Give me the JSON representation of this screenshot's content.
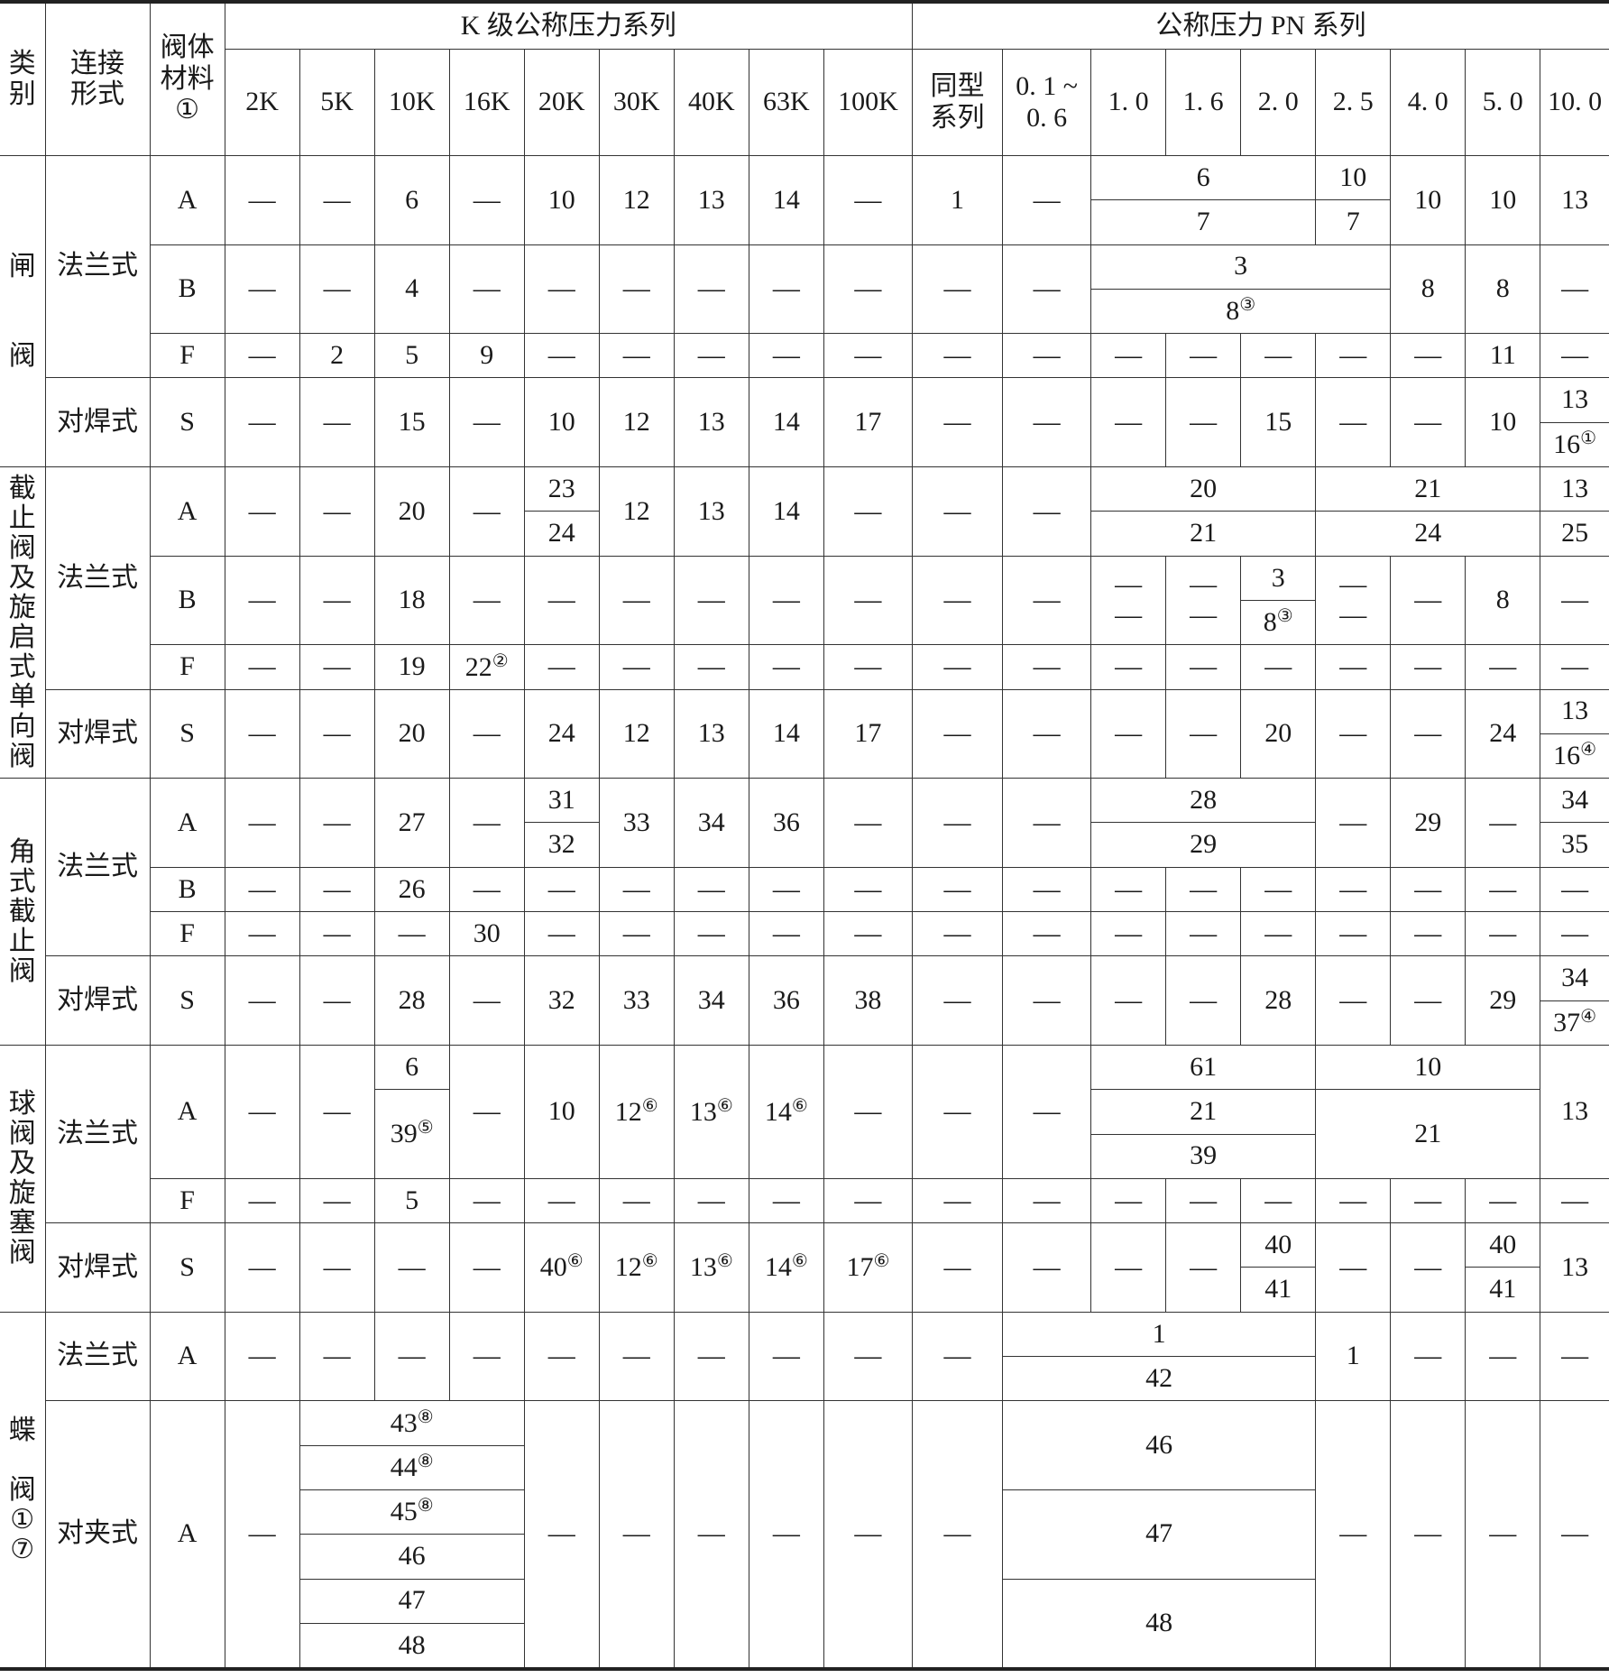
{
  "header": {
    "row1": [
      {
        "text": "类\n别",
        "rowspan": 2
      },
      {
        "text": "连接\n形式",
        "rowspan": 2
      },
      {
        "text": "阀体\n材料\n①",
        "rowspan": 2
      },
      {
        "text": "K 级公称压力系列",
        "colspan": 9
      },
      {
        "text": "公称压力 PN 系列",
        "colspan": 9
      }
    ],
    "row2": [
      {
        "text": "2K"
      },
      {
        "text": "5K"
      },
      {
        "text": "10K"
      },
      {
        "text": "16K"
      },
      {
        "text": "20K"
      },
      {
        "text": "30K"
      },
      {
        "text": "40K"
      },
      {
        "text": "63K"
      },
      {
        "text": "100K"
      },
      {
        "text": "同型\n系列"
      },
      {
        "text": "0. 1 ~\n0. 6"
      },
      {
        "text": "1. 0"
      },
      {
        "text": "1. 6"
      },
      {
        "text": "2. 0"
      },
      {
        "text": "2. 5"
      },
      {
        "text": "4. 0"
      },
      {
        "text": "5. 0"
      },
      {
        "text": "10. 0"
      }
    ]
  },
  "body": [
    [
      {
        "text": "闸\n\n\n阀",
        "rowspan": 7,
        "cat": true
      },
      {
        "text": "法兰式",
        "rowspan": 5
      },
      {
        "text": "A",
        "rowspan": 2
      },
      {
        "text": "—",
        "rowspan": 2
      },
      {
        "text": "—",
        "rowspan": 2
      },
      {
        "text": "6",
        "rowspan": 2
      },
      {
        "text": "—",
        "rowspan": 2
      },
      {
        "text": "10",
        "rowspan": 2
      },
      {
        "text": "12",
        "rowspan": 2
      },
      {
        "text": "13",
        "rowspan": 2
      },
      {
        "text": "14",
        "rowspan": 2
      },
      {
        "text": "—",
        "rowspan": 2
      },
      {
        "text": "1",
        "rowspan": 2
      },
      {
        "text": "—",
        "rowspan": 2
      },
      {
        "text": "6",
        "colspan": 3
      },
      {
        "text": "10"
      },
      {
        "text": "10",
        "rowspan": 2
      },
      {
        "text": "10",
        "rowspan": 2
      },
      {
        "text": "13",
        "rowspan": 2
      }
    ],
    [
      {
        "text": "7",
        "colspan": 3
      },
      {
        "text": "7"
      }
    ],
    [
      {
        "text": "B",
        "rowspan": 2
      },
      {
        "text": "—",
        "rowspan": 2
      },
      {
        "text": "—",
        "rowspan": 2
      },
      {
        "text": "4",
        "rowspan": 2
      },
      {
        "text": "—",
        "rowspan": 2
      },
      {
        "text": "—",
        "rowspan": 2
      },
      {
        "text": "—",
        "rowspan": 2
      },
      {
        "text": "—",
        "rowspan": 2
      },
      {
        "text": "—",
        "rowspan": 2
      },
      {
        "text": "—",
        "rowspan": 2
      },
      {
        "text": "—",
        "rowspan": 2
      },
      {
        "text": "—",
        "rowspan": 2
      },
      {
        "text": "3",
        "colspan": 4
      },
      {
        "text": "8",
        "rowspan": 2
      },
      {
        "text": "8",
        "rowspan": 2
      },
      {
        "text": "—",
        "rowspan": 2
      }
    ],
    [
      {
        "text": "8",
        "sup": "③",
        "colspan": 4
      }
    ],
    [
      {
        "text": "F"
      },
      {
        "text": "—"
      },
      {
        "text": "2"
      },
      {
        "text": "5"
      },
      {
        "text": "9"
      },
      {
        "text": "—"
      },
      {
        "text": "—"
      },
      {
        "text": "—"
      },
      {
        "text": "—"
      },
      {
        "text": "—"
      },
      {
        "text": "—"
      },
      {
        "text": "—"
      },
      {
        "text": "—"
      },
      {
        "text": "—"
      },
      {
        "text": "—"
      },
      {
        "text": "—"
      },
      {
        "text": "—"
      },
      {
        "text": "11"
      },
      {
        "text": "—"
      }
    ],
    [
      {
        "text": "对焊式",
        "rowspan": 2
      },
      {
        "text": "S",
        "rowspan": 2
      },
      {
        "text": "—",
        "rowspan": 2
      },
      {
        "text": "—",
        "rowspan": 2
      },
      {
        "text": "15",
        "rowspan": 2
      },
      {
        "text": "—",
        "rowspan": 2
      },
      {
        "text": "10",
        "rowspan": 2
      },
      {
        "text": "12",
        "rowspan": 2
      },
      {
        "text": "13",
        "rowspan": 2
      },
      {
        "text": "14",
        "rowspan": 2
      },
      {
        "text": "17",
        "rowspan": 2
      },
      {
        "text": "—",
        "rowspan": 2
      },
      {
        "text": "—",
        "rowspan": 2
      },
      {
        "text": "—",
        "rowspan": 2
      },
      {
        "text": "—",
        "rowspan": 2
      },
      {
        "text": "15",
        "rowspan": 2
      },
      {
        "text": "—",
        "rowspan": 2
      },
      {
        "text": "—",
        "rowspan": 2
      },
      {
        "text": "10",
        "rowspan": 2
      },
      {
        "text": "13"
      }
    ],
    [
      {
        "text": "16",
        "sup": "①"
      }
    ],
    [
      {
        "text": "截止阀及旋启式单向阀",
        "rowspan": 7,
        "cat": true
      },
      {
        "text": "法兰式",
        "rowspan": 5
      },
      {
        "text": "A",
        "rowspan": 2
      },
      {
        "text": "—",
        "rowspan": 2
      },
      {
        "text": "—",
        "rowspan": 2
      },
      {
        "text": "20",
        "rowspan": 2
      },
      {
        "text": "—",
        "rowspan": 2
      },
      {
        "text": "23"
      },
      {
        "text": "12",
        "rowspan": 2
      },
      {
        "text": "13",
        "rowspan": 2
      },
      {
        "text": "14",
        "rowspan": 2
      },
      {
        "text": "—",
        "rowspan": 2
      },
      {
        "text": "—",
        "rowspan": 2
      },
      {
        "text": "—",
        "rowspan": 2
      },
      {
        "text": "20",
        "colspan": 3
      },
      {
        "text": "21",
        "colspan": 3
      },
      {
        "text": "13"
      }
    ],
    [
      {
        "text": "24"
      },
      {
        "text": "21",
        "colspan": 3
      },
      {
        "text": "24",
        "colspan": 3
      },
      {
        "text": "25"
      }
    ],
    [
      {
        "text": "B",
        "rowspan": 2
      },
      {
        "text": "—",
        "rowspan": 2
      },
      {
        "text": "—",
        "rowspan": 2
      },
      {
        "text": "18",
        "rowspan": 2
      },
      {
        "text": "—",
        "rowspan": 2
      },
      {
        "text": "—",
        "rowspan": 2
      },
      {
        "text": "—",
        "rowspan": 2
      },
      {
        "text": "—",
        "rowspan": 2
      },
      {
        "text": "—",
        "rowspan": 2
      },
      {
        "text": "—",
        "rowspan": 2
      },
      {
        "text": "—",
        "rowspan": 2
      },
      {
        "text": "—",
        "rowspan": 2
      },
      {
        "text": "—\n—",
        "rowspan": 2
      },
      {
        "text": "—\n—",
        "rowspan": 2
      },
      {
        "text": "3"
      },
      {
        "text": "—\n—",
        "rowspan": 2
      },
      {
        "text": "—",
        "rowspan": 2
      },
      {
        "text": "8",
        "rowspan": 2
      },
      {
        "text": "—",
        "rowspan": 2
      }
    ],
    [
      {
        "text": "8",
        "sup": "③"
      }
    ],
    [
      {
        "text": "F"
      },
      {
        "text": "—"
      },
      {
        "text": "—"
      },
      {
        "text": "19"
      },
      {
        "text": "22",
        "sup": "②"
      },
      {
        "text": "—"
      },
      {
        "text": "—"
      },
      {
        "text": "—"
      },
      {
        "text": "—"
      },
      {
        "text": "—"
      },
      {
        "text": "—"
      },
      {
        "text": "—"
      },
      {
        "text": "—"
      },
      {
        "text": "—"
      },
      {
        "text": "—"
      },
      {
        "text": "—"
      },
      {
        "text": "—"
      },
      {
        "text": "—"
      },
      {
        "text": "—"
      }
    ],
    [
      {
        "text": "对焊式",
        "rowspan": 2
      },
      {
        "text": "S",
        "rowspan": 2
      },
      {
        "text": "—",
        "rowspan": 2
      },
      {
        "text": "—",
        "rowspan": 2
      },
      {
        "text": "20",
        "rowspan": 2
      },
      {
        "text": "—",
        "rowspan": 2
      },
      {
        "text": "24",
        "rowspan": 2
      },
      {
        "text": "12",
        "rowspan": 2
      },
      {
        "text": "13",
        "rowspan": 2
      },
      {
        "text": "14",
        "rowspan": 2
      },
      {
        "text": "17",
        "rowspan": 2
      },
      {
        "text": "—",
        "rowspan": 2
      },
      {
        "text": "—",
        "rowspan": 2
      },
      {
        "text": "—",
        "rowspan": 2
      },
      {
        "text": "—",
        "rowspan": 2
      },
      {
        "text": "20",
        "rowspan": 2
      },
      {
        "text": "—",
        "rowspan": 2
      },
      {
        "text": "—",
        "rowspan": 2
      },
      {
        "text": "24",
        "rowspan": 2
      },
      {
        "text": "13"
      }
    ],
    [
      {
        "text": "16",
        "sup": "④"
      }
    ],
    [
      {
        "text": "角式截止阀",
        "rowspan": 6,
        "cat": true
      },
      {
        "text": "法兰式",
        "rowspan": 4
      },
      {
        "text": "A",
        "rowspan": 2
      },
      {
        "text": "—",
        "rowspan": 2
      },
      {
        "text": "—",
        "rowspan": 2
      },
      {
        "text": "27",
        "rowspan": 2
      },
      {
        "text": "—",
        "rowspan": 2
      },
      {
        "text": "31"
      },
      {
        "text": "33",
        "rowspan": 2
      },
      {
        "text": "34",
        "rowspan": 2
      },
      {
        "text": "36",
        "rowspan": 2
      },
      {
        "text": "—",
        "rowspan": 2
      },
      {
        "text": "—",
        "rowspan": 2
      },
      {
        "text": "—",
        "rowspan": 2
      },
      {
        "text": "28",
        "colspan": 3
      },
      {
        "text": "—",
        "rowspan": 2
      },
      {
        "text": "29",
        "rowspan": 2
      },
      {
        "text": "—",
        "rowspan": 2
      },
      {
        "text": "34"
      }
    ],
    [
      {
        "text": "32"
      },
      {
        "text": "29",
        "colspan": 3
      },
      {
        "text": "35"
      }
    ],
    [
      {
        "text": "B"
      },
      {
        "text": "—"
      },
      {
        "text": "—"
      },
      {
        "text": "26"
      },
      {
        "text": "—"
      },
      {
        "text": "—"
      },
      {
        "text": "—"
      },
      {
        "text": "—"
      },
      {
        "text": "—"
      },
      {
        "text": "—"
      },
      {
        "text": "—"
      },
      {
        "text": "—"
      },
      {
        "text": "—"
      },
      {
        "text": "—"
      },
      {
        "text": "—"
      },
      {
        "text": "—"
      },
      {
        "text": "—"
      },
      {
        "text": "—"
      },
      {
        "text": "—"
      }
    ],
    [
      {
        "text": "F"
      },
      {
        "text": "—"
      },
      {
        "text": "—"
      },
      {
        "text": "—"
      },
      {
        "text": "30"
      },
      {
        "text": "—"
      },
      {
        "text": "—"
      },
      {
        "text": "—"
      },
      {
        "text": "—"
      },
      {
        "text": "—"
      },
      {
        "text": "—"
      },
      {
        "text": "—"
      },
      {
        "text": "—"
      },
      {
        "text": "—"
      },
      {
        "text": "—"
      },
      {
        "text": "—"
      },
      {
        "text": "—"
      },
      {
        "text": "—"
      },
      {
        "text": "—"
      }
    ],
    [
      {
        "text": "对焊式",
        "rowspan": 2
      },
      {
        "text": "S",
        "rowspan": 2
      },
      {
        "text": "—",
        "rowspan": 2
      },
      {
        "text": "—",
        "rowspan": 2
      },
      {
        "text": "28",
        "rowspan": 2
      },
      {
        "text": "—",
        "rowspan": 2
      },
      {
        "text": "32",
        "rowspan": 2
      },
      {
        "text": "33",
        "rowspan": 2
      },
      {
        "text": "34",
        "rowspan": 2
      },
      {
        "text": "36",
        "rowspan": 2
      },
      {
        "text": "38",
        "rowspan": 2
      },
      {
        "text": "—",
        "rowspan": 2
      },
      {
        "text": "—",
        "rowspan": 2
      },
      {
        "text": "—",
        "rowspan": 2
      },
      {
        "text": "—",
        "rowspan": 2
      },
      {
        "text": "28",
        "rowspan": 2
      },
      {
        "text": "—",
        "rowspan": 2
      },
      {
        "text": "—",
        "rowspan": 2
      },
      {
        "text": "29",
        "rowspan": 2
      },
      {
        "text": "34"
      }
    ],
    [
      {
        "text": "37",
        "sup": "④"
      }
    ],
    [
      {
        "text": "球阀及旋塞阀",
        "rowspan": 6,
        "cat": true
      },
      {
        "text": "法兰式",
        "rowspan": 4
      },
      {
        "text": "A",
        "rowspan": 3
      },
      {
        "text": "—",
        "rowspan": 3
      },
      {
        "text": "—",
        "rowspan": 3
      },
      {
        "text": "6"
      },
      {
        "text": "—",
        "rowspan": 3
      },
      {
        "text": "10",
        "rowspan": 3
      },
      {
        "text": "12",
        "sup": "⑥",
        "rowspan": 3
      },
      {
        "text": "13",
        "sup": "⑥",
        "rowspan": 3
      },
      {
        "text": "14",
        "sup": "⑥",
        "rowspan": 3
      },
      {
        "text": "—",
        "rowspan": 3
      },
      {
        "text": "—",
        "rowspan": 3
      },
      {
        "text": "—",
        "rowspan": 3
      },
      {
        "text": "61",
        "colspan": 3
      },
      {
        "text": "10",
        "colspan": 3
      },
      {
        "text": "13",
        "rowspan": 3
      }
    ],
    [
      {
        "text": "39",
        "sup": "⑤",
        "rowspan": 2
      },
      {
        "text": "21",
        "colspan": 3
      },
      {
        "text": "21",
        "colspan": 3,
        "rowspan": 2
      }
    ],
    [
      {
        "text": "39",
        "colspan": 3
      }
    ],
    [
      {
        "text": "F"
      },
      {
        "text": "—"
      },
      {
        "text": "—"
      },
      {
        "text": "5"
      },
      {
        "text": "—"
      },
      {
        "text": "—"
      },
      {
        "text": "—"
      },
      {
        "text": "—"
      },
      {
        "text": "—"
      },
      {
        "text": "—"
      },
      {
        "text": "—"
      },
      {
        "text": "—"
      },
      {
        "text": "—"
      },
      {
        "text": "—"
      },
      {
        "text": "—"
      },
      {
        "text": "—"
      },
      {
        "text": "—"
      },
      {
        "text": "—"
      },
      {
        "text": "—"
      }
    ],
    [
      {
        "text": "对焊式",
        "rowspan": 2
      },
      {
        "text": "S",
        "rowspan": 2
      },
      {
        "text": "—",
        "rowspan": 2
      },
      {
        "text": "—",
        "rowspan": 2
      },
      {
        "text": "—",
        "rowspan": 2
      },
      {
        "text": "—",
        "rowspan": 2
      },
      {
        "text": "40",
        "sup": "⑥",
        "rowspan": 2
      },
      {
        "text": "12",
        "sup": "⑥",
        "rowspan": 2
      },
      {
        "text": "13",
        "sup": "⑥",
        "rowspan": 2
      },
      {
        "text": "14",
        "sup": "⑥",
        "rowspan": 2
      },
      {
        "text": "17",
        "sup": "⑥",
        "rowspan": 2
      },
      {
        "text": "—",
        "rowspan": 2
      },
      {
        "text": "—",
        "rowspan": 2
      },
      {
        "text": "—",
        "rowspan": 2
      },
      {
        "text": "—",
        "rowspan": 2
      },
      {
        "text": "40"
      },
      {
        "text": "—",
        "rowspan": 2
      },
      {
        "text": "—",
        "rowspan": 2
      },
      {
        "text": "40"
      },
      {
        "text": "13",
        "rowspan": 2
      }
    ],
    [
      {
        "text": "41"
      },
      {
        "text": "41"
      }
    ],
    [
      {
        "text": "蝶\n\n阀\n①\n⑦",
        "rowspan": 8,
        "cat": true
      },
      {
        "text": "法兰式",
        "rowspan": 2
      },
      {
        "text": "A",
        "rowspan": 2
      },
      {
        "text": "—",
        "rowspan": 2
      },
      {
        "text": "—",
        "rowspan": 2
      },
      {
        "text": "—",
        "rowspan": 2
      },
      {
        "text": "—",
        "rowspan": 2
      },
      {
        "text": "—",
        "rowspan": 2
      },
      {
        "text": "—",
        "rowspan": 2
      },
      {
        "text": "—",
        "rowspan": 2
      },
      {
        "text": "—",
        "rowspan": 2
      },
      {
        "text": "—",
        "rowspan": 2
      },
      {
        "text": "—",
        "rowspan": 2
      },
      {
        "text": "1",
        "colspan": 4
      },
      {
        "text": "1",
        "rowspan": 2
      },
      {
        "text": "—",
        "rowspan": 2
      },
      {
        "text": "—",
        "rowspan": 2
      },
      {
        "text": "—",
        "rowspan": 2
      }
    ],
    [
      {
        "text": "42",
        "colspan": 4
      }
    ],
    [
      {
        "text": "对夹式",
        "rowspan": 6
      },
      {
        "text": "A",
        "rowspan": 6
      },
      {
        "text": "—",
        "rowspan": 6
      },
      {
        "text": "43",
        "sup": "⑧",
        "colspan": 3
      },
      {
        "text": "—",
        "rowspan": 6
      },
      {
        "text": "—",
        "rowspan": 6
      },
      {
        "text": "—",
        "rowspan": 6
      },
      {
        "text": "—",
        "rowspan": 6
      },
      {
        "text": "—",
        "rowspan": 6
      },
      {
        "text": "—",
        "rowspan": 6
      },
      {
        "text": "46",
        "colspan": 4,
        "rowspan": 2
      },
      {
        "text": "—",
        "rowspan": 6
      },
      {
        "text": "—",
        "rowspan": 6
      },
      {
        "text": "—",
        "rowspan": 6
      },
      {
        "text": "—",
        "rowspan": 6
      }
    ],
    [
      {
        "text": "44",
        "sup": "⑧",
        "colspan": 3
      }
    ],
    [
      {
        "text": "45",
        "sup": "⑧",
        "colspan": 3
      },
      {
        "text": "47",
        "colspan": 4,
        "rowspan": 2
      }
    ],
    [
      {
        "text": "46",
        "colspan": 3
      }
    ],
    [
      {
        "text": "47",
        "colspan": 3
      },
      {
        "text": "48",
        "colspan": 4,
        "rowspan": 2
      }
    ],
    [
      {
        "text": "48",
        "colspan": 3
      }
    ]
  ]
}
